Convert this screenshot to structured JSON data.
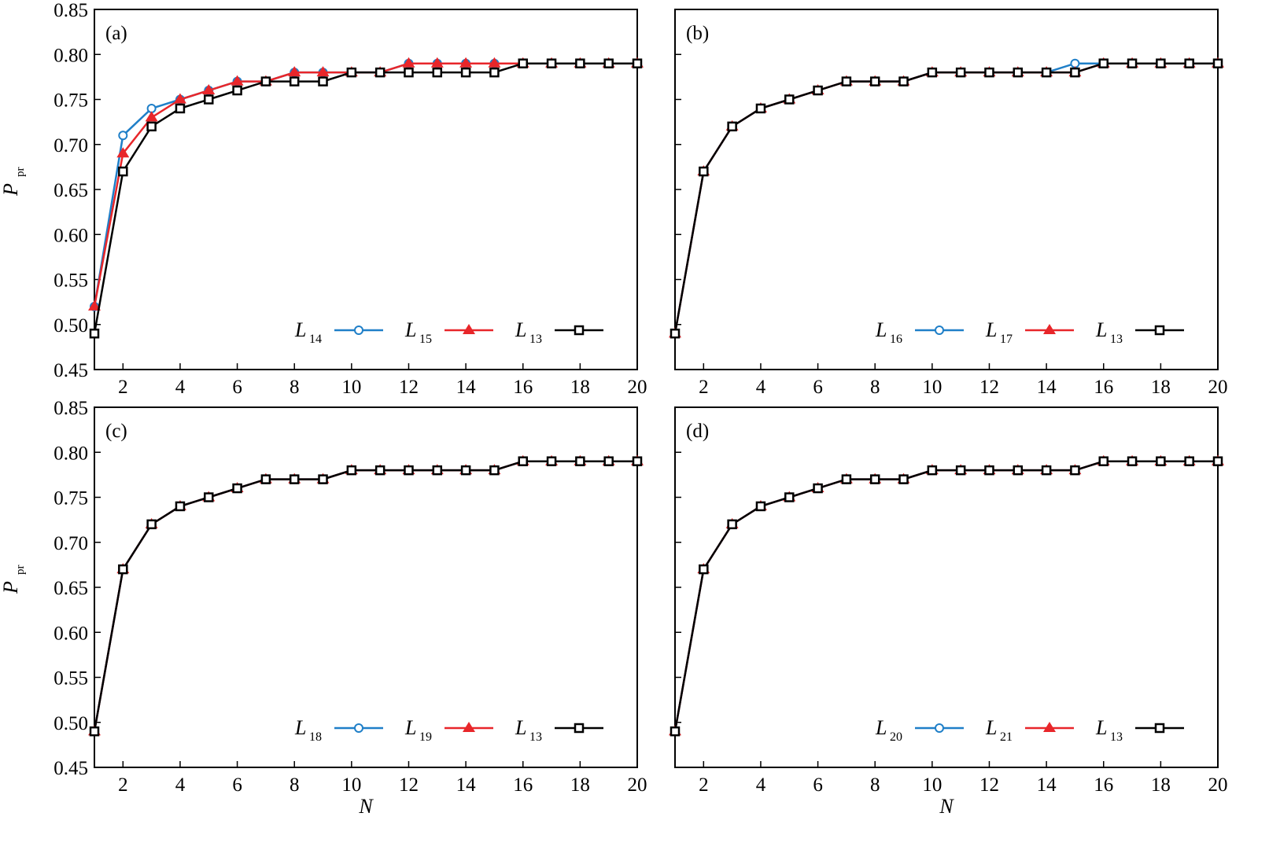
{
  "chart_data": [
    {
      "type": "line",
      "panel_label": "(a)",
      "xlabel": "",
      "ylabel": "P",
      "ylabel_sub": "pr",
      "xlim": [
        1,
        20
      ],
      "ylim": [
        0.45,
        0.85
      ],
      "xticks": [
        2,
        4,
        6,
        8,
        10,
        12,
        14,
        16,
        18,
        20
      ],
      "yticks": [
        "0.45",
        "0.50",
        "0.55",
        "0.60",
        "0.65",
        "0.70",
        "0.75",
        "0.80",
        "0.85"
      ],
      "legend": "bottom-right",
      "x": [
        1,
        2,
        3,
        4,
        5,
        6,
        7,
        8,
        9,
        10,
        11,
        12,
        13,
        14,
        15,
        16,
        17,
        18,
        19,
        20
      ],
      "series": [
        {
          "name": "L",
          "sub": "14",
          "color": "#1f7fc8",
          "marker": "circle",
          "values": [
            0.52,
            0.71,
            0.74,
            0.75,
            0.76,
            0.77,
            0.77,
            0.78,
            0.78,
            0.78,
            0.78,
            0.79,
            0.79,
            0.79,
            0.79,
            0.79,
            0.79,
            0.79,
            0.79,
            0.79
          ]
        },
        {
          "name": "L",
          "sub": "15",
          "color": "#e8262a",
          "marker": "triangle",
          "values": [
            0.52,
            0.69,
            0.73,
            0.75,
            0.76,
            0.77,
            0.77,
            0.78,
            0.78,
            0.78,
            0.78,
            0.79,
            0.79,
            0.79,
            0.79,
            0.79,
            0.79,
            0.79,
            0.79,
            0.79
          ]
        },
        {
          "name": "L",
          "sub": "13",
          "color": "#000000",
          "marker": "square",
          "values": [
            0.49,
            0.67,
            0.72,
            0.74,
            0.75,
            0.76,
            0.77,
            0.77,
            0.77,
            0.78,
            0.78,
            0.78,
            0.78,
            0.78,
            0.78,
            0.79,
            0.79,
            0.79,
            0.79,
            0.79
          ]
        }
      ]
    },
    {
      "type": "line",
      "panel_label": "(b)",
      "xlabel": "",
      "ylabel": "",
      "xlim": [
        1,
        20
      ],
      "ylim": [
        0.45,
        0.85
      ],
      "xticks": [
        2,
        4,
        6,
        8,
        10,
        12,
        14,
        16,
        18,
        20
      ],
      "yticks": [],
      "legend": "bottom-right",
      "x": [
        1,
        2,
        3,
        4,
        5,
        6,
        7,
        8,
        9,
        10,
        11,
        12,
        13,
        14,
        15,
        16,
        17,
        18,
        19,
        20
      ],
      "series": [
        {
          "name": "L",
          "sub": "16",
          "color": "#1f7fc8",
          "marker": "circle",
          "values": [
            0.49,
            0.67,
            0.72,
            0.74,
            0.75,
            0.76,
            0.77,
            0.77,
            0.77,
            0.78,
            0.78,
            0.78,
            0.78,
            0.78,
            0.79,
            0.79,
            0.79,
            0.79,
            0.79,
            0.79
          ]
        },
        {
          "name": "L",
          "sub": "17",
          "color": "#e8262a",
          "marker": "triangle",
          "values": [
            0.49,
            0.67,
            0.72,
            0.74,
            0.75,
            0.76,
            0.77,
            0.77,
            0.77,
            0.78,
            0.78,
            0.78,
            0.78,
            0.78,
            0.78,
            0.79,
            0.79,
            0.79,
            0.79,
            0.79
          ]
        },
        {
          "name": "L",
          "sub": "13",
          "color": "#000000",
          "marker": "square",
          "values": [
            0.49,
            0.67,
            0.72,
            0.74,
            0.75,
            0.76,
            0.77,
            0.77,
            0.77,
            0.78,
            0.78,
            0.78,
            0.78,
            0.78,
            0.78,
            0.79,
            0.79,
            0.79,
            0.79,
            0.79
          ]
        }
      ]
    },
    {
      "type": "line",
      "panel_label": "(c)",
      "xlabel": "N",
      "ylabel": "P",
      "ylabel_sub": "pr",
      "xlim": [
        1,
        20
      ],
      "ylim": [
        0.45,
        0.85
      ],
      "xticks": [
        2,
        4,
        6,
        8,
        10,
        12,
        14,
        16,
        18,
        20
      ],
      "yticks": [
        "0.45",
        "0.50",
        "0.55",
        "0.60",
        "0.65",
        "0.70",
        "0.75",
        "0.80",
        "0.85"
      ],
      "legend": "bottom-right",
      "x": [
        1,
        2,
        3,
        4,
        5,
        6,
        7,
        8,
        9,
        10,
        11,
        12,
        13,
        14,
        15,
        16,
        17,
        18,
        19,
        20
      ],
      "series": [
        {
          "name": "L",
          "sub": "18",
          "color": "#1f7fc8",
          "marker": "circle",
          "values": [
            0.49,
            0.67,
            0.72,
            0.74,
            0.75,
            0.76,
            0.77,
            0.77,
            0.77,
            0.78,
            0.78,
            0.78,
            0.78,
            0.78,
            0.78,
            0.79,
            0.79,
            0.79,
            0.79,
            0.79
          ]
        },
        {
          "name": "L",
          "sub": "19",
          "color": "#e8262a",
          "marker": "triangle",
          "values": [
            0.49,
            0.67,
            0.72,
            0.74,
            0.75,
            0.76,
            0.77,
            0.77,
            0.77,
            0.78,
            0.78,
            0.78,
            0.78,
            0.78,
            0.78,
            0.79,
            0.79,
            0.79,
            0.79,
            0.79
          ]
        },
        {
          "name": "L",
          "sub": "13",
          "color": "#000000",
          "marker": "square",
          "values": [
            0.49,
            0.67,
            0.72,
            0.74,
            0.75,
            0.76,
            0.77,
            0.77,
            0.77,
            0.78,
            0.78,
            0.78,
            0.78,
            0.78,
            0.78,
            0.79,
            0.79,
            0.79,
            0.79,
            0.79
          ]
        }
      ]
    },
    {
      "type": "line",
      "panel_label": "(d)",
      "xlabel": "N",
      "ylabel": "",
      "xlim": [
        1,
        20
      ],
      "ylim": [
        0.45,
        0.85
      ],
      "xticks": [
        2,
        4,
        6,
        8,
        10,
        12,
        14,
        16,
        18,
        20
      ],
      "yticks": [],
      "legend": "bottom-right",
      "x": [
        1,
        2,
        3,
        4,
        5,
        6,
        7,
        8,
        9,
        10,
        11,
        12,
        13,
        14,
        15,
        16,
        17,
        18,
        19,
        20
      ],
      "series": [
        {
          "name": "L",
          "sub": "20",
          "color": "#1f7fc8",
          "marker": "circle",
          "values": [
            0.49,
            0.67,
            0.72,
            0.74,
            0.75,
            0.76,
            0.77,
            0.77,
            0.77,
            0.78,
            0.78,
            0.78,
            0.78,
            0.78,
            0.78,
            0.79,
            0.79,
            0.79,
            0.79,
            0.79
          ]
        },
        {
          "name": "L",
          "sub": "21",
          "color": "#e8262a",
          "marker": "triangle",
          "values": [
            0.49,
            0.67,
            0.72,
            0.74,
            0.75,
            0.76,
            0.77,
            0.77,
            0.77,
            0.78,
            0.78,
            0.78,
            0.78,
            0.78,
            0.78,
            0.79,
            0.79,
            0.79,
            0.79,
            0.79
          ]
        },
        {
          "name": "L",
          "sub": "13",
          "color": "#000000",
          "marker": "square",
          "values": [
            0.49,
            0.67,
            0.72,
            0.74,
            0.75,
            0.76,
            0.77,
            0.77,
            0.77,
            0.78,
            0.78,
            0.78,
            0.78,
            0.78,
            0.78,
            0.79,
            0.79,
            0.79,
            0.79,
            0.79
          ]
        }
      ]
    }
  ]
}
